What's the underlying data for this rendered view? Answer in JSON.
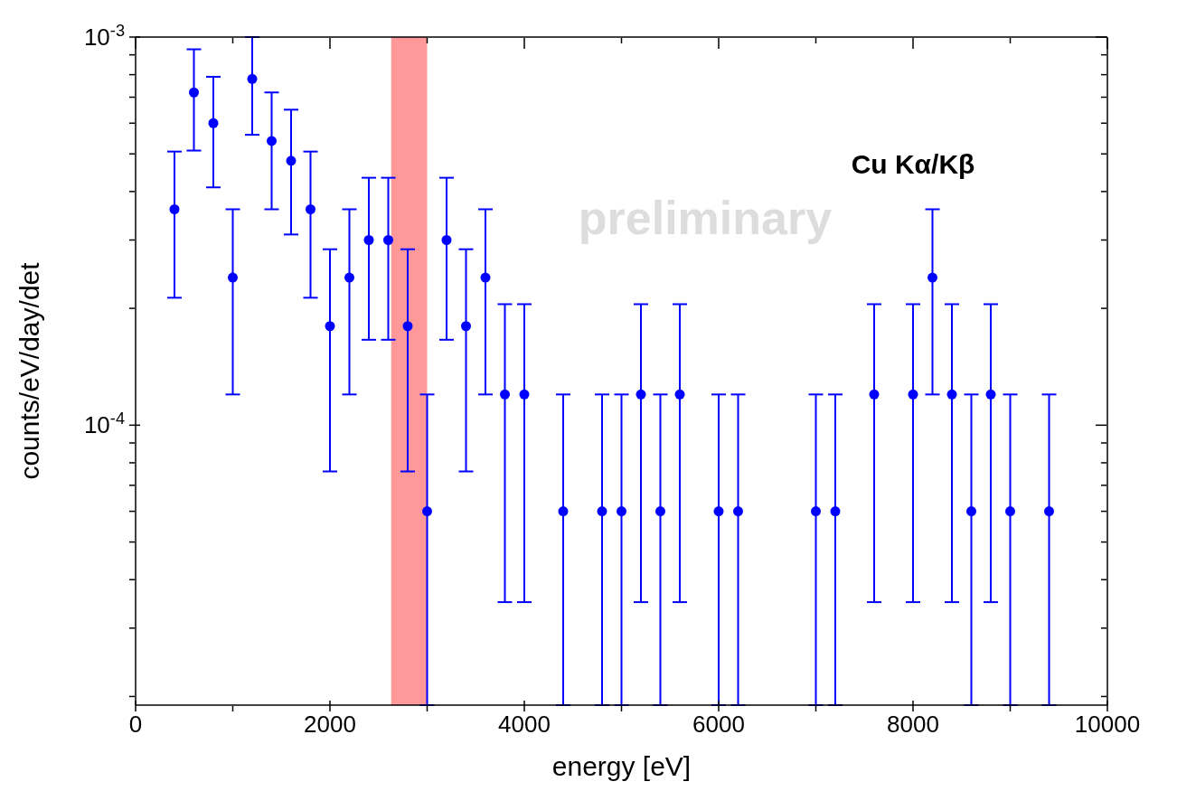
{
  "chart_data": {
    "type": "scatter",
    "xlabel": "energy [eV]",
    "ylabel": "counts/eV/day/det",
    "log": "y",
    "marker": "circle",
    "x": [
      400,
      600,
      800,
      1000,
      1200,
      1400,
      1600,
      1800,
      2000,
      2200,
      2400,
      2600,
      2800,
      3000,
      3200,
      3400,
      3600,
      3800,
      4000,
      4400,
      4800,
      5000,
      5200,
      5400,
      5600,
      6000,
      6200,
      7000,
      7200,
      7600,
      8000,
      8200,
      8400,
      8600,
      8800,
      9000,
      9400
    ],
    "series": [
      {
        "color": "#0000ff",
        "values": [
          0.00036,
          0.00072,
          0.0006,
          0.00024,
          0.00078,
          0.00054,
          0.00048,
          0.00036,
          0.00018,
          0.00024,
          0.0003,
          0.0003,
          0.00018,
          6e-05,
          0.0003,
          0.00018,
          0.00024,
          0.00012,
          0.00012,
          6e-05,
          6e-05,
          6e-05,
          0.00012,
          6e-05,
          0.00012,
          6e-05,
          6e-05,
          6e-05,
          6e-05,
          0.00012,
          0.00012,
          0.00024,
          0.00012,
          6e-05,
          0.00012,
          6e-05,
          6e-05
        ],
        "errors": [
          [
            0.000213,
            0.000507
          ],
          [
            0.00051,
            0.00093
          ],
          [
            0.00041,
            0.00079
          ],
          [
            0.00012,
            0.00036
          ],
          [
            0.00056,
            0.001
          ],
          [
            0.00036,
            0.00072
          ],
          [
            0.00031,
            0.00065
          ],
          [
            0.000213,
            0.000507
          ],
          [
            7.6e-05,
            0.000284
          ],
          [
            0.00012,
            0.00036
          ],
          [
            0.000166,
            0.000434
          ],
          [
            0.000166,
            0.000434
          ],
          [
            7.6e-05,
            0.000284
          ],
          [
            1.9e-05,
            0.00012
          ],
          [
            0.000166,
            0.000434
          ],
          [
            7.6e-05,
            0.000284
          ],
          [
            0.00012,
            0.00036
          ],
          [
            3.5e-05,
            0.000205
          ],
          [
            3.5e-05,
            0.000205
          ],
          [
            1.9e-05,
            0.00012
          ],
          [
            1.9e-05,
            0.00012
          ],
          [
            1.9e-05,
            0.00012
          ],
          [
            3.5e-05,
            0.000205
          ],
          [
            1.9e-05,
            0.00012
          ],
          [
            3.5e-05,
            0.000205
          ],
          [
            1.9e-05,
            0.00012
          ],
          [
            1.9e-05,
            0.00012
          ],
          [
            1.9e-05,
            0.00012
          ],
          [
            1.9e-05,
            0.00012
          ],
          [
            3.5e-05,
            0.000205
          ],
          [
            3.5e-05,
            0.000205
          ],
          [
            0.00012,
            0.00036
          ],
          [
            3.5e-05,
            0.000205
          ],
          [
            1.9e-05,
            0.00012
          ],
          [
            3.5e-05,
            0.000205
          ],
          [
            1.9e-05,
            0.00012
          ],
          [
            1.9e-05,
            0.00012
          ]
        ]
      }
    ],
    "xlim": [
      0,
      10000
    ],
    "xticks": [
      0,
      {
        "value": 1000,
        "label": null
      },
      2000,
      {
        "value": 3000,
        "label": null
      },
      4000,
      {
        "value": 5000,
        "label": null
      },
      6000,
      {
        "value": 7000,
        "label": null
      },
      8000,
      {
        "value": 9000,
        "label": null
      },
      10000
    ],
    "ylim": [
      1.9e-05,
      0.001
    ],
    "yticks": [
      {
        "value": 2e-05,
        "label": null
      },
      {
        "value": 3e-05,
        "label": null
      },
      {
        "value": 4e-05,
        "label": null
      },
      {
        "value": 5e-05,
        "label": null
      },
      {
        "value": 6e-05,
        "label": null
      },
      {
        "value": 7e-05,
        "label": null
      },
      {
        "value": 8e-05,
        "label": null
      },
      {
        "value": 9e-05,
        "label": null
      },
      {
        "value": 0.0001,
        "label": "10$^{-4}$"
      },
      {
        "value": 0.0002,
        "label": null
      },
      {
        "value": 0.0003,
        "label": null
      },
      {
        "value": 0.0004,
        "label": null
      },
      {
        "value": 0.0005,
        "label": null
      },
      {
        "value": 0.0006,
        "label": null
      },
      {
        "value": 0.0007,
        "label": null
      },
      {
        "value": 0.0008,
        "label": null
      },
      {
        "value": 0.0009,
        "label": null
      },
      {
        "value": 0.001,
        "label": "10$^{-3}$"
      }
    ],
    "bands": [
      {
        "axis": "x",
        "from": 2630,
        "to": 3000,
        "color": "#ff9999"
      }
    ],
    "annotations": [
      "preliminary",
      "Cu Kα/Kβ"
    ]
  }
}
